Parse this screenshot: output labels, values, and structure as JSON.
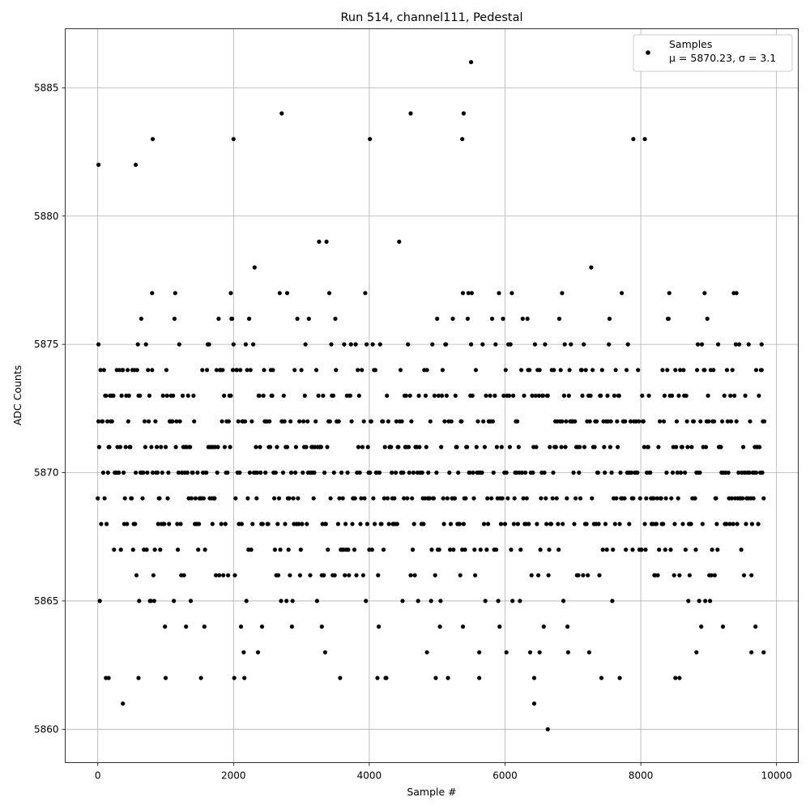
{
  "chart_data": {
    "type": "scatter",
    "title": "Run 514, channel111, Pedestal",
    "xlabel": "Sample #",
    "ylabel": "ADC Counts",
    "xlim": [
      -480,
      10320
    ],
    "ylim": [
      5858.7,
      5887.3
    ],
    "xticks": [
      0,
      2000,
      4000,
      6000,
      8000,
      10000
    ],
    "yticks": [
      5860,
      5865,
      5870,
      5875,
      5880,
      5885
    ],
    "grid": true,
    "legend_position": "top-right",
    "marker_color": "#000000",
    "series": [
      {
        "name": "Samples",
        "legend_lines": [
          "Samples",
          "μ = 5870.23, σ = 3.1"
        ],
        "sample_range": [
          0,
          9820
        ],
        "sample_step": 10,
        "mean": 5870.23,
        "sigma": 3.1,
        "points": [
          [
            10,
            5882
          ],
          [
            10,
            5875
          ],
          [
            370,
            5861
          ],
          [
            560,
            5882
          ],
          [
            810,
            5883
          ],
          [
            1000,
            5862
          ],
          [
            2000,
            5883
          ],
          [
            2710,
            5884
          ],
          [
            3350,
            5863
          ],
          [
            4010,
            5883
          ],
          [
            4610,
            5884
          ],
          [
            4850,
            5863
          ],
          [
            5370,
            5883
          ],
          [
            5390,
            5884
          ],
          [
            5500,
            5886
          ],
          [
            5620,
            5863
          ],
          [
            6430,
            5861
          ],
          [
            6630,
            5860
          ],
          [
            7690,
            5862
          ],
          [
            7890,
            5883
          ],
          [
            8060,
            5883
          ],
          [
            8510,
            5862
          ],
          [
            8570,
            5862
          ],
          [
            8820,
            5863
          ],
          [
            9630,
            5863
          ],
          [
            9810,
            5863
          ],
          [
            800,
            5877
          ],
          [
            1960,
            5877
          ],
          [
            2790,
            5877
          ],
          [
            5380,
            5877
          ],
          [
            6840,
            5877
          ],
          [
            8940,
            5877
          ],
          [
            9410,
            5877
          ],
          [
            9780,
            5875
          ],
          [
            9700,
            5874
          ],
          [
            120,
            5862
          ],
          [
            160,
            5862
          ],
          [
            600,
            5862
          ],
          [
            3300,
            5864
          ],
          [
            6020,
            5863
          ],
          [
            6510,
            5863
          ]
        ]
      }
    ]
  }
}
